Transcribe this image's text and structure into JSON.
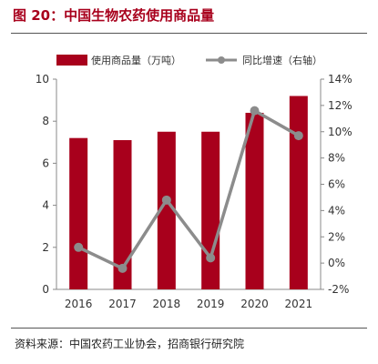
{
  "header": {
    "title": "图 20：中国生物农药使用商品量"
  },
  "footer": {
    "source": "资料来源：中国农药工业协会，招商银行研究院"
  },
  "chart_data": {
    "type": "bar",
    "title": "中国生物农药使用商品量",
    "categories": [
      "2016",
      "2017",
      "2018",
      "2019",
      "2020",
      "2021"
    ],
    "series": [
      {
        "name": "使用商品量（万吨）",
        "type": "bar",
        "axis": "left",
        "color": "#a8001c",
        "values": [
          7.2,
          7.1,
          7.5,
          7.5,
          8.4,
          9.2
        ]
      },
      {
        "name": "同比增速（右轴）",
        "type": "line",
        "axis": "right",
        "color": "#8c8c8c",
        "values": [
          1.2,
          -0.4,
          4.8,
          0.4,
          11.6,
          9.7
        ]
      }
    ],
    "y_left": {
      "min": 0,
      "max": 10,
      "ticks": [
        "0",
        "2",
        "4",
        "6",
        "8",
        "10"
      ]
    },
    "y_right": {
      "min": -2,
      "max": 14,
      "ticks": [
        "-2%",
        "0%",
        "2%",
        "4%",
        "6%",
        "8%",
        "10%",
        "12%",
        "14%"
      ]
    },
    "grid": false,
    "legend": "top"
  }
}
